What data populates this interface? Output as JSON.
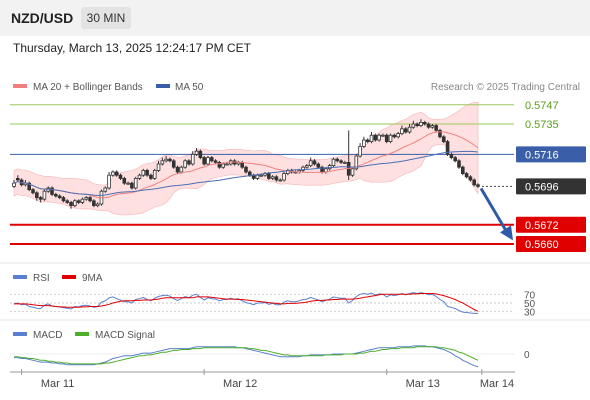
{
  "header": {
    "symbol": "NZD/USD",
    "timeframe": "30 MIN",
    "datetime": "Thursday, March 13, 2025 12:24:17 PM CET"
  },
  "legend": {
    "ma20_label": "MA 20 + Bollinger Bands",
    "ma50_label": "MA 50",
    "credit": "Research © 2025 Trading Central"
  },
  "colors": {
    "candle": "#333333",
    "bollinger_fill": "#ffd6d6",
    "ma20": "#f08080",
    "ma50": "#4a6fb5",
    "resistance": "#9bc75a",
    "pivot": "#3a5fa8",
    "support": "#e00000",
    "arrow": "#2f5aa8",
    "rsi": "#5b7fd0",
    "nine_ma": "#e00000",
    "macd": "#5b7fd0",
    "macd_signal": "#4caf2a"
  },
  "chart_data": [
    {
      "type": "candlestick",
      "ylim": [
        0.5655,
        0.5755
      ],
      "levels": [
        {
          "value": 0.5747,
          "label": "0.5747",
          "kind": "resistance"
        },
        {
          "value": 0.5735,
          "label": "0.5735",
          "kind": "resistance"
        },
        {
          "value": 0.5716,
          "label": "0.5716",
          "kind": "pivot"
        },
        {
          "value": 0.5696,
          "label": "0.5696",
          "kind": "last"
        },
        {
          "value": 0.5672,
          "label": "0.5672",
          "kind": "support"
        },
        {
          "value": 0.566,
          "label": "0.5660",
          "kind": "support"
        }
      ],
      "close": [
        0.5698,
        0.57,
        0.5697,
        0.5698,
        0.5694,
        0.5692,
        0.5689,
        0.5688,
        0.5693,
        0.5695,
        0.5691,
        0.569,
        0.5689,
        0.5687,
        0.5686,
        0.5684,
        0.5687,
        0.5686,
        0.5688,
        0.5689,
        0.5687,
        0.5684,
        0.5685,
        0.5693,
        0.5695,
        0.5703,
        0.5705,
        0.5703,
        0.5701,
        0.5698,
        0.5698,
        0.5695,
        0.5701,
        0.5703,
        0.5706,
        0.5703,
        0.5701,
        0.5706,
        0.571,
        0.5712,
        0.5713,
        0.5712,
        0.5708,
        0.5705,
        0.5708,
        0.5712,
        0.571,
        0.5716,
        0.5718,
        0.5714,
        0.571,
        0.5714,
        0.5712,
        0.5711,
        0.5708,
        0.571,
        0.571,
        0.5712,
        0.571,
        0.5711,
        0.5708,
        0.5705,
        0.5703,
        0.5701,
        0.5703,
        0.5703,
        0.5704,
        0.5701,
        0.5702,
        0.57,
        0.57,
        0.5704,
        0.5706,
        0.5705,
        0.5705,
        0.5706,
        0.5708,
        0.5709,
        0.5712,
        0.571,
        0.5708,
        0.5705,
        0.5707,
        0.5709,
        0.5713,
        0.5712,
        0.5711,
        0.5711,
        0.5703,
        0.5707,
        0.5715,
        0.5721,
        0.5725,
        0.5724,
        0.5728,
        0.5725,
        0.5728,
        0.5728,
        0.5724,
        0.5728,
        0.5727,
        0.5729,
        0.5732,
        0.573,
        0.5733,
        0.5735,
        0.5734,
        0.5736,
        0.5735,
        0.5733,
        0.5734,
        0.5731,
        0.5727,
        0.5724,
        0.5716,
        0.5714,
        0.5712,
        0.5708,
        0.5704,
        0.5702,
        0.57,
        0.5697,
        0.5696
      ],
      "marks": {
        "open_offsets": [
          -2,
          1,
          3,
          -1,
          4,
          2,
          3,
          1,
          -5,
          -2,
          4,
          1,
          1,
          2,
          1,
          2,
          -3,
          1,
          -2,
          -1,
          2,
          3,
          -1,
          -8,
          -2,
          -8,
          -2,
          2,
          2,
          3,
          0,
          3,
          -6,
          -2,
          -3,
          3,
          2,
          -5,
          -4,
          -2,
          -1,
          1,
          4,
          3,
          -3,
          -4,
          2,
          -6,
          -2,
          4,
          4,
          -4,
          2,
          1,
          3,
          -2,
          0,
          -2,
          2,
          -1,
          3,
          3,
          2,
          2,
          -2,
          0,
          -1,
          3,
          -1,
          2,
          0,
          -4,
          -2,
          1,
          0,
          -1,
          -2,
          -1,
          -3,
          2,
          2,
          3,
          -2,
          -2,
          -4,
          1,
          1,
          0,
          8,
          -4,
          -8,
          -6,
          -4,
          1,
          -4,
          3,
          -3,
          0,
          4,
          -4,
          1,
          -2,
          -3,
          2,
          -3,
          -2,
          1,
          -2,
          1,
          2,
          -1,
          3,
          4,
          3,
          8,
          2,
          2,
          4,
          4,
          2,
          2,
          3,
          1
        ],
        "wick_high": [
          2,
          2,
          1,
          2,
          1,
          1,
          1,
          1,
          1,
          1,
          1,
          1,
          1,
          1,
          1,
          1,
          1,
          1,
          1,
          1,
          1,
          1,
          1,
          1,
          1,
          2,
          1,
          1,
          1,
          1,
          1,
          1,
          1,
          1,
          1,
          1,
          1,
          1,
          2,
          2,
          2,
          1,
          1,
          1,
          1,
          1,
          1,
          2,
          2,
          1,
          1,
          1,
          1,
          1,
          1,
          1,
          1,
          1,
          1,
          1,
          1,
          1,
          1,
          1,
          1,
          1,
          1,
          1,
          1,
          1,
          1,
          1,
          1,
          1,
          1,
          1,
          1,
          1,
          2,
          1,
          1,
          1,
          1,
          1,
          1,
          1,
          1,
          1,
          20,
          1,
          1,
          2,
          2,
          1,
          2,
          1,
          1,
          1,
          1,
          1,
          1,
          1,
          2,
          1,
          2,
          2,
          1,
          2,
          1,
          1,
          1,
          1,
          1,
          1,
          1,
          1,
          1,
          1,
          1,
          1,
          1,
          1,
          1
        ],
        "wick_low": [
          1,
          1,
          1,
          1,
          1,
          1,
          2,
          2,
          1,
          1,
          1,
          1,
          1,
          1,
          1,
          2,
          1,
          1,
          1,
          1,
          1,
          1,
          1,
          1,
          1,
          1,
          1,
          1,
          1,
          1,
          1,
          1,
          1,
          1,
          1,
          1,
          1,
          1,
          1,
          1,
          1,
          1,
          1,
          1,
          1,
          1,
          1,
          1,
          1,
          1,
          1,
          1,
          1,
          1,
          1,
          1,
          1,
          1,
          1,
          1,
          1,
          1,
          1,
          1,
          1,
          1,
          1,
          1,
          1,
          1,
          1,
          1,
          1,
          1,
          1,
          1,
          1,
          1,
          1,
          1,
          1,
          1,
          1,
          1,
          1,
          1,
          1,
          1,
          3,
          1,
          1,
          1,
          1,
          1,
          1,
          1,
          1,
          1,
          1,
          1,
          1,
          1,
          1,
          1,
          1,
          1,
          1,
          1,
          1,
          1,
          1,
          1,
          1,
          1,
          1,
          1,
          1,
          1,
          1,
          1,
          1,
          1,
          1
        ]
      }
    },
    {
      "type": "line",
      "name": "RSI",
      "ylim": [
        20,
        80
      ],
      "ticks": [
        70,
        50,
        30
      ],
      "series": [
        {
          "name": "RSI",
          "values": [
            48,
            50,
            46,
            47,
            42,
            40,
            38,
            37,
            45,
            48,
            43,
            42,
            41,
            39,
            38,
            36,
            42,
            41,
            44,
            45,
            43,
            40,
            42,
            52,
            55,
            62,
            64,
            60,
            57,
            53,
            53,
            50,
            58,
            60,
            63,
            58,
            55,
            61,
            65,
            67,
            68,
            66,
            60,
            56,
            60,
            65,
            62,
            68,
            70,
            63,
            57,
            62,
            60,
            59,
            55,
            58,
            58,
            61,
            58,
            60,
            55,
            51,
            49,
            46,
            50,
            50,
            51,
            47,
            49,
            46,
            46,
            52,
            55,
            53,
            53,
            55,
            58,
            59,
            63,
            60,
            57,
            53,
            56,
            59,
            64,
            62,
            61,
            61,
            50,
            56,
            65,
            70,
            72,
            70,
            73,
            68,
            71,
            70,
            64,
            69,
            67,
            69,
            72,
            69,
            72,
            74,
            72,
            74,
            72,
            69,
            70,
            65,
            58,
            53,
            42,
            40,
            37,
            33,
            29,
            28,
            27,
            26,
            26
          ]
        },
        {
          "name": "9MA",
          "values": [
            48,
            48,
            48,
            48,
            47,
            46,
            45,
            44,
            44,
            44,
            43,
            42,
            41,
            41,
            40,
            40,
            40,
            40,
            41,
            41,
            42,
            42,
            42,
            43,
            45,
            47,
            50,
            52,
            54,
            55,
            55,
            55,
            56,
            56,
            57,
            57,
            57,
            58,
            59,
            61,
            62,
            62,
            62,
            62,
            62,
            62,
            62,
            62,
            64,
            64,
            64,
            64,
            63,
            62,
            61,
            60,
            59,
            59,
            59,
            58,
            58,
            57,
            56,
            55,
            54,
            53,
            52,
            51,
            50,
            49,
            48,
            48,
            49,
            49,
            49,
            50,
            51,
            52,
            54,
            55,
            56,
            56,
            57,
            57,
            58,
            58,
            59,
            59,
            59,
            59,
            60,
            61,
            63,
            64,
            66,
            67,
            69,
            70,
            70,
            70,
            70,
            70,
            70,
            70,
            70,
            71,
            71,
            72,
            72,
            72,
            72,
            71,
            69,
            67,
            64,
            61,
            58,
            54,
            50,
            45,
            40,
            35,
            31
          ]
        }
      ]
    },
    {
      "type": "line",
      "name": "MACD",
      "zero_label": "0",
      "series": [
        {
          "name": "MACD",
          "values": [
            -4,
            -4,
            -5,
            -5,
            -6,
            -7,
            -8,
            -9,
            -9,
            -9,
            -10,
            -10,
            -11,
            -11,
            -12,
            -12,
            -12,
            -12,
            -12,
            -12,
            -12,
            -12,
            -11,
            -10,
            -9,
            -7,
            -5,
            -4,
            -3,
            -2,
            -2,
            -2,
            -1,
            0,
            1,
            1,
            1,
            2,
            3,
            4,
            5,
            6,
            6,
            6,
            6,
            6,
            6,
            7,
            8,
            8,
            8,
            8,
            8,
            8,
            8,
            8,
            8,
            8,
            8,
            7,
            7,
            6,
            5,
            4,
            3,
            2,
            1,
            0,
            -1,
            -2,
            -3,
            -3,
            -3,
            -3,
            -3,
            -3,
            -2,
            -2,
            -1,
            -1,
            -1,
            -1,
            -1,
            -1,
            0,
            0,
            0,
            0,
            0,
            0,
            1,
            2,
            3,
            4,
            5,
            6,
            7,
            7,
            7,
            7,
            7,
            8,
            8,
            8,
            8,
            9,
            9,
            9,
            9,
            8,
            8,
            7,
            6,
            5,
            3,
            1,
            -2,
            -4,
            -7,
            -9,
            -11,
            -13,
            -14
          ]
        },
        {
          "name": "MACD Signal",
          "values": [
            -3,
            -3,
            -4,
            -4,
            -5,
            -5,
            -6,
            -7,
            -7,
            -8,
            -8,
            -9,
            -9,
            -10,
            -10,
            -11,
            -11,
            -11,
            -11,
            -11,
            -11,
            -11,
            -11,
            -11,
            -10,
            -10,
            -9,
            -8,
            -7,
            -6,
            -5,
            -4,
            -3,
            -2,
            -2,
            -1,
            -1,
            0,
            1,
            2,
            2,
            3,
            4,
            4,
            5,
            5,
            5,
            6,
            6,
            6,
            7,
            7,
            7,
            7,
            7,
            7,
            7,
            7,
            7,
            7,
            7,
            7,
            6,
            6,
            5,
            4,
            4,
            3,
            2,
            1,
            0,
            -1,
            -1,
            -2,
            -2,
            -2,
            -2,
            -2,
            -2,
            -2,
            -2,
            -2,
            -1,
            -1,
            -1,
            -1,
            -1,
            0,
            0,
            0,
            0,
            1,
            1,
            2,
            3,
            3,
            4,
            5,
            5,
            6,
            6,
            6,
            7,
            7,
            7,
            7,
            8,
            8,
            8,
            8,
            8,
            8,
            7,
            7,
            6,
            5,
            4,
            2,
            1,
            -1,
            -3,
            -5,
            -7
          ]
        }
      ]
    }
  ],
  "xaxis": {
    "labels": [
      {
        "text": "Mar 11",
        "index": 2
      },
      {
        "text": "Mar 12",
        "index": 50
      },
      {
        "text": "Mar 13",
        "index": 98
      },
      {
        "text": "Mar 14",
        "index": 123
      }
    ]
  },
  "rsi_legend": {
    "rsi": "RSI",
    "nine_ma": "9MA"
  },
  "macd_legend": {
    "macd": "MACD",
    "signal": "MACD Signal"
  }
}
